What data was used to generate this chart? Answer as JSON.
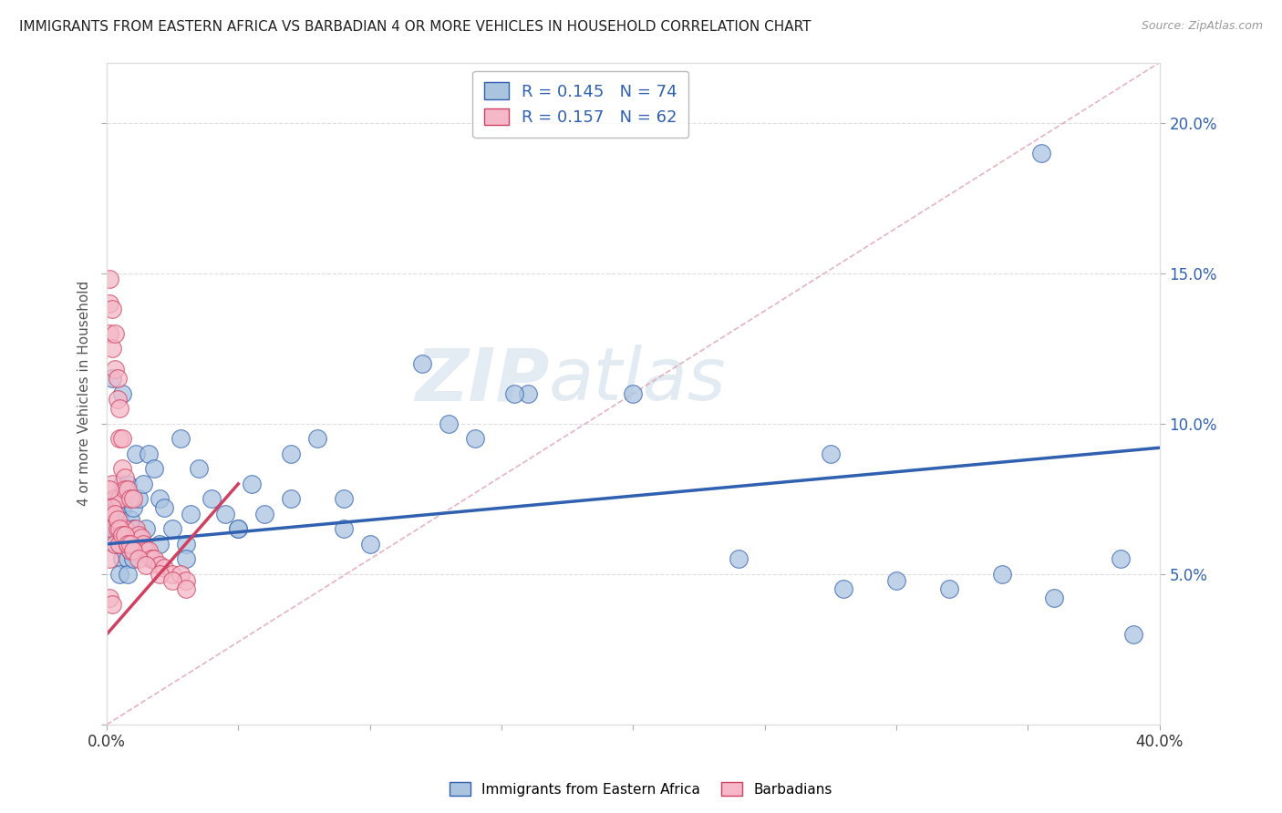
{
  "title": "IMMIGRANTS FROM EASTERN AFRICA VS BARBADIAN 4 OR MORE VEHICLES IN HOUSEHOLD CORRELATION CHART",
  "source": "Source: ZipAtlas.com",
  "ylabel": "4 or more Vehicles in Household",
  "xlim": [
    0.0,
    0.4
  ],
  "ylim": [
    0.0,
    0.22
  ],
  "xticks": [
    0.0,
    0.05,
    0.1,
    0.15,
    0.2,
    0.25,
    0.3,
    0.35,
    0.4
  ],
  "yticks_left": [
    0.0,
    0.05,
    0.1,
    0.15,
    0.2
  ],
  "yticks_right": [
    0.05,
    0.1,
    0.15,
    0.2
  ],
  "ytick_right_labels": [
    "5.0%",
    "10.0%",
    "15.0%",
    "20.0%"
  ],
  "blue_R": 0.145,
  "blue_N": 74,
  "pink_R": 0.157,
  "pink_N": 62,
  "blue_color": "#aac4e0",
  "pink_color": "#f5b8c8",
  "blue_line_color": "#3060b0",
  "pink_line_color": "#d04060",
  "diag_line_color": "#e0a0b0",
  "legend_label_blue": "Immigrants from Eastern Africa",
  "legend_label_pink": "Barbadians",
  "watermark_zip": "ZIP",
  "watermark_atlas": "atlas",
  "blue_trend_x0": 0.0,
  "blue_trend_y0": 0.06,
  "blue_trend_x1": 0.4,
  "blue_trend_y1": 0.092,
  "pink_trend_x0": 0.0,
  "pink_trend_y0": 0.03,
  "pink_trend_x1": 0.05,
  "pink_trend_y1": 0.08,
  "blue_scatter_x": [
    0.001,
    0.002,
    0.002,
    0.003,
    0.003,
    0.004,
    0.004,
    0.004,
    0.005,
    0.005,
    0.005,
    0.006,
    0.006,
    0.006,
    0.007,
    0.007,
    0.008,
    0.008,
    0.009,
    0.009,
    0.01,
    0.01,
    0.011,
    0.012,
    0.013,
    0.014,
    0.015,
    0.016,
    0.017,
    0.018,
    0.02,
    0.022,
    0.025,
    0.028,
    0.03,
    0.032,
    0.035,
    0.04,
    0.045,
    0.05,
    0.055,
    0.06,
    0.07,
    0.08,
    0.09,
    0.1,
    0.12,
    0.14,
    0.16,
    0.2,
    0.24,
    0.28,
    0.3,
    0.32,
    0.34,
    0.36,
    0.39,
    0.003,
    0.005,
    0.008,
    0.01,
    0.015,
    0.02,
    0.03,
    0.05,
    0.07,
    0.09,
    0.13,
    0.155,
    0.275,
    0.355,
    0.385,
    0.002,
    0.006
  ],
  "blue_scatter_y": [
    0.068,
    0.072,
    0.065,
    0.075,
    0.065,
    0.073,
    0.06,
    0.07,
    0.068,
    0.075,
    0.062,
    0.08,
    0.055,
    0.072,
    0.075,
    0.062,
    0.08,
    0.055,
    0.068,
    0.058,
    0.072,
    0.065,
    0.09,
    0.075,
    0.06,
    0.08,
    0.065,
    0.09,
    0.055,
    0.085,
    0.075,
    0.072,
    0.065,
    0.095,
    0.06,
    0.07,
    0.085,
    0.075,
    0.07,
    0.065,
    0.08,
    0.07,
    0.09,
    0.095,
    0.065,
    0.06,
    0.12,
    0.095,
    0.11,
    0.11,
    0.055,
    0.045,
    0.048,
    0.045,
    0.05,
    0.042,
    0.03,
    0.06,
    0.05,
    0.05,
    0.055,
    0.058,
    0.06,
    0.055,
    0.065,
    0.075,
    0.075,
    0.1,
    0.11,
    0.09,
    0.19,
    0.055,
    0.115,
    0.11
  ],
  "pink_scatter_x": [
    0.001,
    0.001,
    0.001,
    0.001,
    0.001,
    0.002,
    0.002,
    0.002,
    0.002,
    0.003,
    0.003,
    0.003,
    0.003,
    0.004,
    0.004,
    0.004,
    0.005,
    0.005,
    0.005,
    0.005,
    0.006,
    0.006,
    0.006,
    0.007,
    0.007,
    0.007,
    0.008,
    0.008,
    0.009,
    0.009,
    0.01,
    0.01,
    0.011,
    0.012,
    0.013,
    0.014,
    0.015,
    0.016,
    0.017,
    0.018,
    0.02,
    0.022,
    0.025,
    0.028,
    0.03,
    0.001,
    0.002,
    0.003,
    0.004,
    0.005,
    0.006,
    0.007,
    0.008,
    0.009,
    0.01,
    0.012,
    0.015,
    0.02,
    0.025,
    0.03,
    0.001,
    0.002
  ],
  "pink_scatter_y": [
    0.148,
    0.14,
    0.13,
    0.07,
    0.055,
    0.138,
    0.125,
    0.08,
    0.065,
    0.13,
    0.118,
    0.075,
    0.06,
    0.115,
    0.108,
    0.065,
    0.105,
    0.095,
    0.075,
    0.06,
    0.095,
    0.085,
    0.065,
    0.082,
    0.078,
    0.065,
    0.078,
    0.06,
    0.075,
    0.058,
    0.075,
    0.06,
    0.065,
    0.063,
    0.062,
    0.06,
    0.058,
    0.058,
    0.055,
    0.055,
    0.053,
    0.052,
    0.05,
    0.05,
    0.048,
    0.078,
    0.072,
    0.07,
    0.068,
    0.065,
    0.063,
    0.063,
    0.06,
    0.06,
    0.058,
    0.055,
    0.053,
    0.05,
    0.048,
    0.045,
    0.042,
    0.04
  ]
}
